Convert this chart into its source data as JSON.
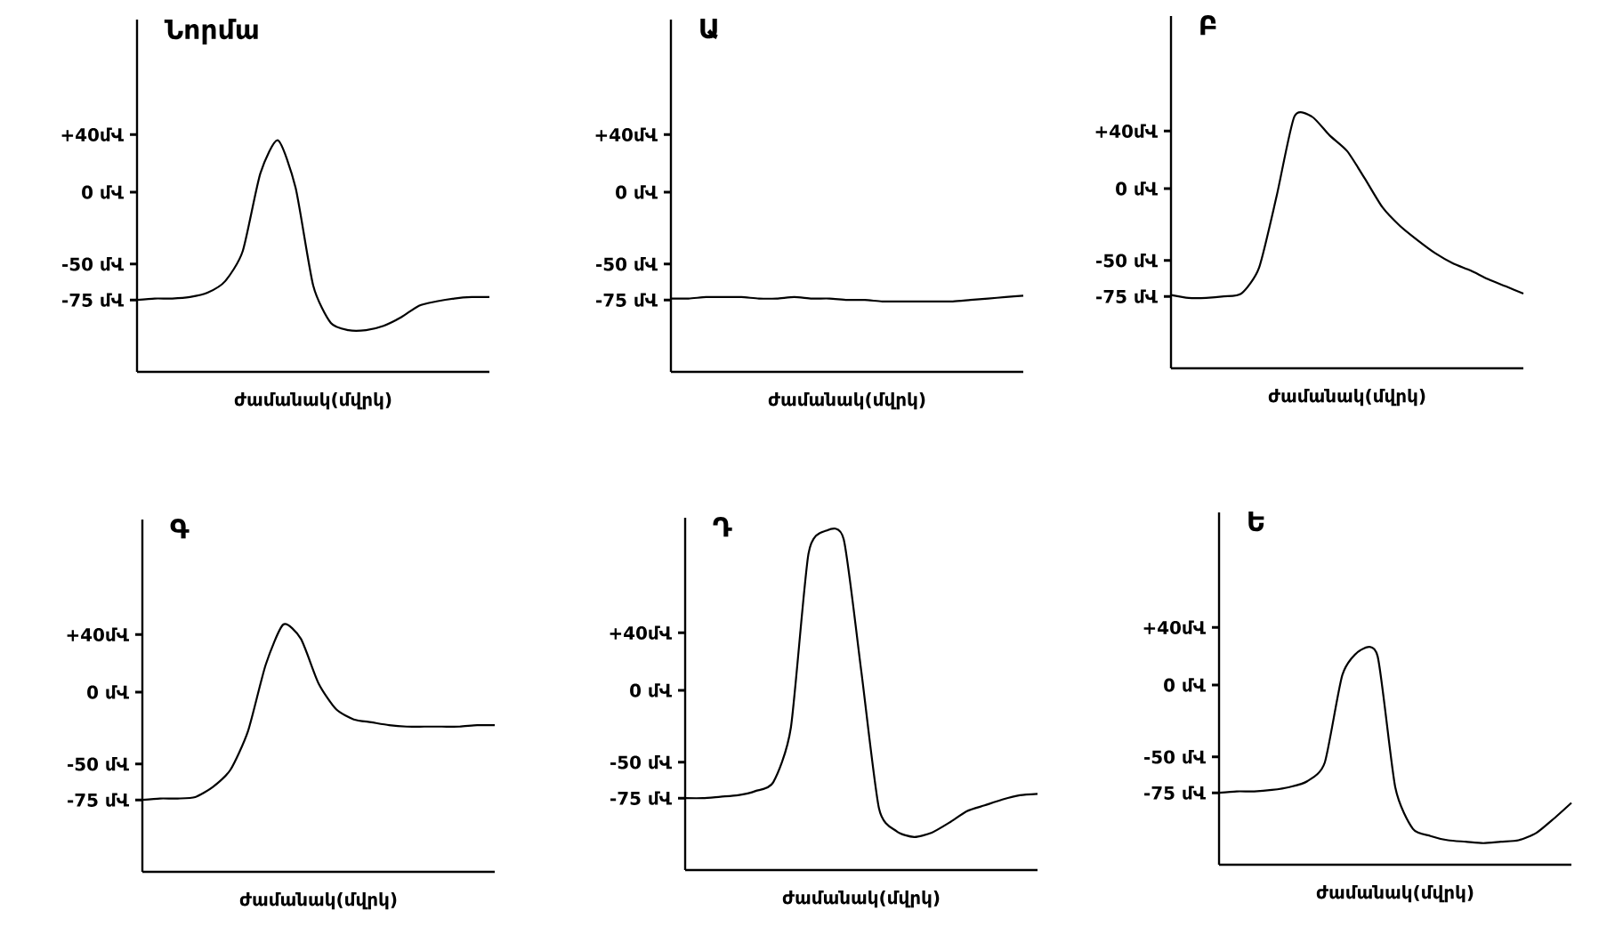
{
  "chart_data": [
    {
      "type": "line",
      "title": "Նորմա",
      "xlabel": "ժամանակ(մվրկ)",
      "color": "#000000",
      "ylim": [
        -125,
        120
      ],
      "categories": [
        null,
        null,
        null,
        null,
        null,
        null,
        null,
        null,
        null,
        null,
        null,
        null,
        null,
        null,
        null,
        null,
        null,
        null,
        null,
        null,
        null
      ],
      "values": [
        -75,
        -74,
        -74,
        -73,
        -70,
        -62,
        -41,
        13,
        36,
        3,
        -65,
        -91,
        -96,
        -96,
        -93,
        -87,
        -79,
        -76,
        -74,
        -73,
        -73
      ],
      "yticks": [
        {
          "value": 40,
          "label": "+40մՎ"
        },
        {
          "value": 0,
          "label": "0 մՎ"
        },
        {
          "value": -50,
          "label": "-50 մՎ"
        },
        {
          "value": -75,
          "label": "-75 մՎ"
        }
      ]
    },
    {
      "type": "line",
      "title": "Ա",
      "xlabel": "ժամանակ(մվրկ)",
      "color": "#000000",
      "ylim": [
        -125,
        120
      ],
      "categories": [
        null,
        null,
        null,
        null,
        null,
        null,
        null,
        null,
        null,
        null,
        null,
        null,
        null,
        null,
        null,
        null,
        null,
        null,
        null,
        null,
        null
      ],
      "values": [
        -74,
        -74,
        -73,
        -73,
        -73,
        -74,
        -74,
        -73,
        -74,
        -74,
        -75,
        -75,
        -76,
        -76,
        -76,
        -76,
        -76,
        -75,
        -74,
        -73,
        -72
      ],
      "yticks": [
        {
          "value": 40,
          "label": "+40մՎ"
        },
        {
          "value": 0,
          "label": "0 մՎ"
        },
        {
          "value": -50,
          "label": "-50 մՎ"
        },
        {
          "value": -75,
          "label": "-75 մՎ"
        }
      ]
    },
    {
      "type": "line",
      "title": "Բ",
      "xlabel": "ժամանակ(մվրկ)",
      "color": "#000000",
      "ylim": [
        -125,
        120
      ],
      "categories": [
        null,
        null,
        null,
        null,
        null,
        null,
        null,
        null,
        null,
        null,
        null,
        null,
        null,
        null,
        null,
        null,
        null,
        null,
        null,
        null,
        null
      ],
      "values": [
        -74,
        -76,
        -76,
        -75,
        -73,
        -55,
        -5,
        50,
        50,
        37,
        26,
        7,
        -13,
        -26,
        -36,
        -45,
        -52,
        -57,
        -63,
        -68,
        -73
      ],
      "yticks": [
        {
          "value": 40,
          "label": "+40մՎ"
        },
        {
          "value": 0,
          "label": "0 մՎ"
        },
        {
          "value": -50,
          "label": "-50 մՎ"
        },
        {
          "value": -75,
          "label": "-75 մՎ"
        }
      ]
    },
    {
      "type": "line",
      "title": "Գ",
      "xlabel": "ժամանակ(մվրկ)",
      "color": "#000000",
      "ylim": [
        -125,
        120
      ],
      "categories": [
        null,
        null,
        null,
        null,
        null,
        null,
        null,
        null,
        null,
        null,
        null,
        null,
        null,
        null,
        null,
        null,
        null,
        null,
        null,
        null,
        null
      ],
      "values": [
        -75,
        -74,
        -74,
        -73,
        -66,
        -54,
        -27,
        19,
        47,
        37,
        6,
        -12,
        -19,
        -21,
        -23,
        -24,
        -24,
        -24,
        -24,
        -23,
        -23
      ],
      "yticks": [
        {
          "value": 40,
          "label": "+40մՎ"
        },
        {
          "value": 0,
          "label": "0 մՎ"
        },
        {
          "value": -50,
          "label": "-50 մՎ"
        },
        {
          "value": -75,
          "label": "-75 մՎ"
        }
      ]
    },
    {
      "type": "line",
      "title": "Դ",
      "xlabel": "ժամանակ(մվրկ)",
      "color": "#000000",
      "ylim": [
        -125,
        120
      ],
      "categories": [
        null,
        null,
        null,
        null,
        null,
        null,
        null,
        null,
        null,
        null,
        null,
        null,
        null,
        null,
        null,
        null,
        null,
        null,
        null,
        null,
        null
      ],
      "values": [
        -75,
        -75,
        -74,
        -73,
        -70,
        -64,
        -26,
        95,
        111,
        105,
        13,
        -82,
        -98,
        -102,
        -99,
        -92,
        -84,
        -80,
        -76,
        -73,
        -72
      ],
      "yticks": [
        {
          "value": 40,
          "label": "+40մՎ"
        },
        {
          "value": 0,
          "label": "0 մՎ"
        },
        {
          "value": -50,
          "label": "-50 մՎ"
        },
        {
          "value": -75,
          "label": "-75 մՎ"
        }
      ]
    },
    {
      "type": "line",
      "title": "Ե",
      "xlabel": "ժամանակ(մվրկ)",
      "color": "#000000",
      "ylim": [
        -125,
        120
      ],
      "categories": [
        null,
        null,
        null,
        null,
        null,
        null,
        null,
        null,
        null,
        null,
        null,
        null,
        null,
        null,
        null,
        null,
        null,
        null,
        null,
        null,
        null
      ],
      "values": [
        -75,
        -74,
        -74,
        -73,
        -71,
        -67,
        -54,
        7,
        24,
        20,
        -71,
        -100,
        -105,
        -108,
        -109,
        -110,
        -109,
        -108,
        -103,
        -93,
        -82
      ],
      "yticks": [
        {
          "value": 40,
          "label": "+40մՎ"
        },
        {
          "value": 0,
          "label": "0 մՎ"
        },
        {
          "value": -50,
          "label": "-50 մՎ"
        },
        {
          "value": -75,
          "label": "-75 մՎ"
        }
      ]
    }
  ]
}
